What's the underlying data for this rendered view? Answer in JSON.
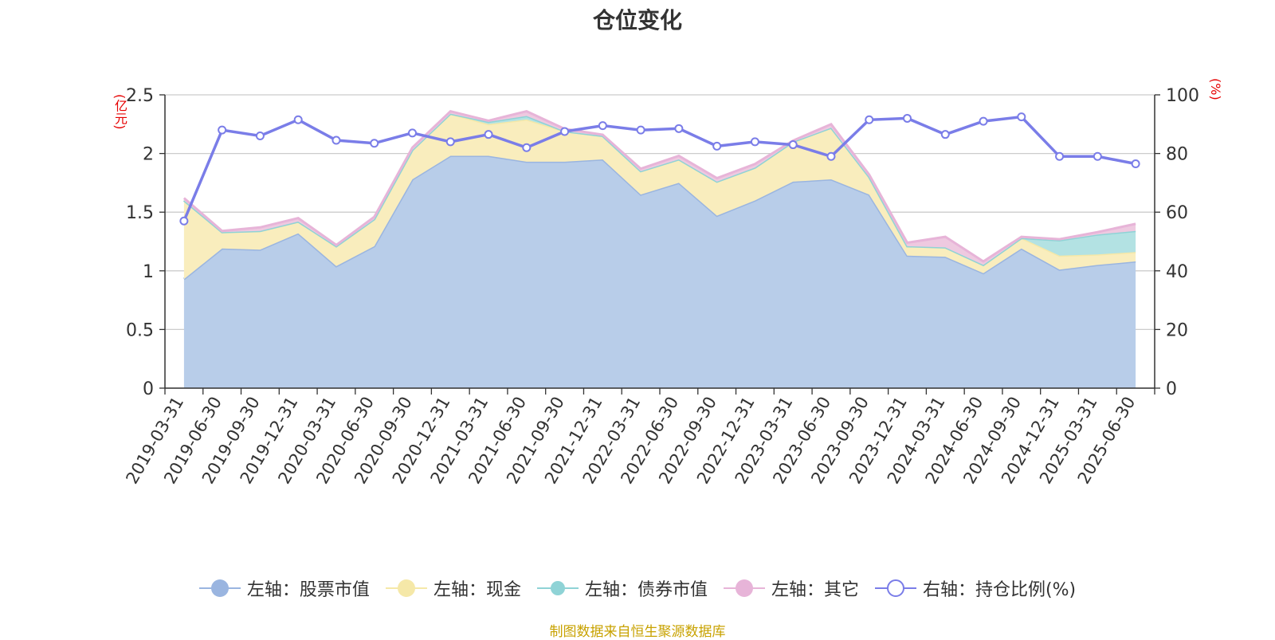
{
  "title": "仓位变化",
  "left_unit": "(亿元)",
  "right_unit": "(%)",
  "source": "制图数据来自恒生聚源数据库",
  "colors": {
    "stock": "#9ab5e0",
    "stock_fill": "#b8cde9",
    "cash": "#f5e8a8",
    "cash_fill": "#f9edbd",
    "bond": "#8fd3d6",
    "bond_fill": "#b3e2e3",
    "other": "#e7b4d8",
    "other_fill": "#eec9e0",
    "ratio": "#7a7de8"
  },
  "legend": [
    {
      "label": "左轴：股票市值",
      "key": "stock"
    },
    {
      "label": "左轴：现金",
      "key": "cash"
    },
    {
      "label": "左轴：债券市值",
      "key": "bond"
    },
    {
      "label": "左轴：其它",
      "key": "other"
    },
    {
      "label": "右轴：持仓比例(%)",
      "key": "ratio"
    }
  ],
  "chart_data": {
    "type": "area",
    "categories": [
      "2019-03-31",
      "2019-06-30",
      "2019-09-30",
      "2019-12-31",
      "2020-03-31",
      "2020-06-30",
      "2020-09-30",
      "2020-12-31",
      "2021-03-31",
      "2021-06-30",
      "2021-09-30",
      "2021-12-31",
      "2022-03-31",
      "2022-06-30",
      "2022-09-30",
      "2022-12-31",
      "2023-03-31",
      "2023-06-30",
      "2023-09-30",
      "2023-12-31",
      "2024-03-31",
      "2024-06-30",
      "2024-09-30",
      "2024-12-31",
      "2025-03-31",
      "2025-06-30"
    ],
    "series": [
      {
        "name": "左轴：股票市值",
        "axis": "left",
        "stack": true,
        "values": [
          0.93,
          1.19,
          1.18,
          1.32,
          1.04,
          1.21,
          1.78,
          1.98,
          1.98,
          1.93,
          1.93,
          1.95,
          1.65,
          1.75,
          1.47,
          1.6,
          1.76,
          1.78,
          1.65,
          1.13,
          1.12,
          0.98,
          1.19,
          1.01,
          1.05,
          1.08
        ]
      },
      {
        "name": "左轴：现金",
        "axis": "left",
        "stack": true,
        "values": [
          0.67,
          0.14,
          0.16,
          0.1,
          0.17,
          0.23,
          0.25,
          0.36,
          0.27,
          0.36,
          0.26,
          0.2,
          0.2,
          0.2,
          0.29,
          0.28,
          0.34,
          0.44,
          0.15,
          0.08,
          0.08,
          0.07,
          0.09,
          0.12,
          0.09,
          0.08
        ]
      },
      {
        "name": "左轴：债券市值",
        "axis": "left",
        "stack": true,
        "values": [
          0,
          0,
          0,
          0,
          0,
          0,
          0,
          0,
          0.02,
          0.03,
          0,
          0,
          0,
          0,
          0,
          0,
          0,
          0,
          0,
          0,
          0,
          0,
          0,
          0.13,
          0.17,
          0.18
        ]
      },
      {
        "name": "左轴：其它",
        "axis": "left",
        "stack": true,
        "values": [
          0.02,
          0.01,
          0.03,
          0.03,
          0.01,
          0.02,
          0.02,
          0.02,
          0.01,
          0.04,
          0.02,
          0.01,
          0.02,
          0.03,
          0.03,
          0.03,
          0.01,
          0.03,
          0.02,
          0.03,
          0.09,
          0.03,
          0.01,
          0.01,
          0.02,
          0.06
        ]
      },
      {
        "name": "右轴：持仓比例(%)",
        "axis": "right",
        "type": "line",
        "values": [
          57,
          88,
          86,
          91.5,
          84.5,
          83.5,
          87,
          84,
          86.5,
          82,
          87.5,
          89.5,
          88,
          88.5,
          82.5,
          84,
          83,
          79,
          91.5,
          92,
          86.5,
          91,
          92.5,
          79,
          79,
          76.5
        ]
      }
    ],
    "yleft": {
      "min": 0,
      "max": 2.5,
      "ticks": [
        "0",
        "0.5",
        "1",
        "1.5",
        "2",
        "2.5"
      ]
    },
    "yright": {
      "min": 0,
      "max": 100,
      "ticks": [
        "0",
        "20",
        "40",
        "60",
        "80",
        "100"
      ]
    },
    "grid": true,
    "legend_position": "bottom"
  }
}
